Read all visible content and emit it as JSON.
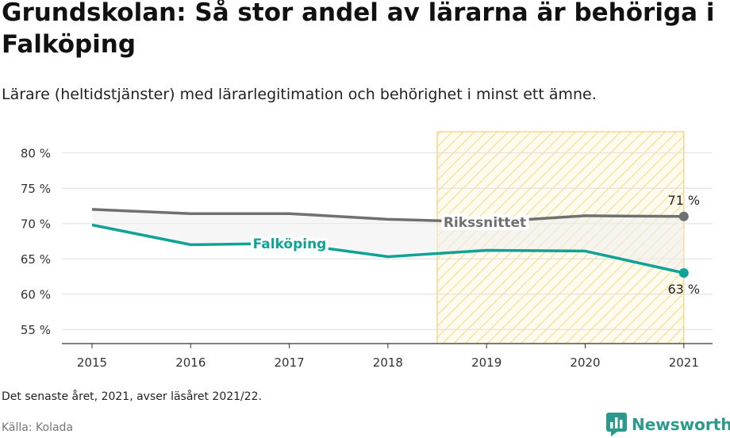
{
  "title": "Grundskolan: Så stor andel av lärarna är behöriga i Falköping",
  "subtitle": "Lärare (heltidstjänster) med lärarlegitimation och behörighet i minst ett ämne.",
  "note": "Det senaste året, 2021, avser läsåret 2021/22.",
  "source": "Källa: Kolada",
  "brand": {
    "name": "Newsworthy",
    "icon": "bar-chart-logo-icon"
  },
  "colors": {
    "national": "#707070",
    "local": "#0fa396",
    "highlight": "#f5cf6a",
    "grid": "#dddddd",
    "brand": "#2a9a8c"
  },
  "chart_data": {
    "type": "line",
    "x": [
      "2015",
      "2016",
      "2017",
      "2018",
      "2019",
      "2020",
      "2021"
    ],
    "ylim": [
      53,
      83
    ],
    "yticks": [
      55,
      60,
      65,
      70,
      75,
      80
    ],
    "ytick_labels": [
      "55 %",
      "60 %",
      "65 %",
      "70 %",
      "75 %",
      "80 %"
    ],
    "grid": true,
    "highlight_range": [
      "2019",
      "2021"
    ],
    "series": [
      {
        "name": "Rikssnittet",
        "values": [
          72.0,
          71.4,
          71.4,
          70.6,
          70.2,
          71.1,
          71.0
        ],
        "end_label": "71 %"
      },
      {
        "name": "Falköping",
        "values": [
          69.8,
          67.0,
          67.2,
          65.3,
          66.2,
          66.1,
          63.0
        ],
        "end_label": "63 %"
      }
    ]
  }
}
